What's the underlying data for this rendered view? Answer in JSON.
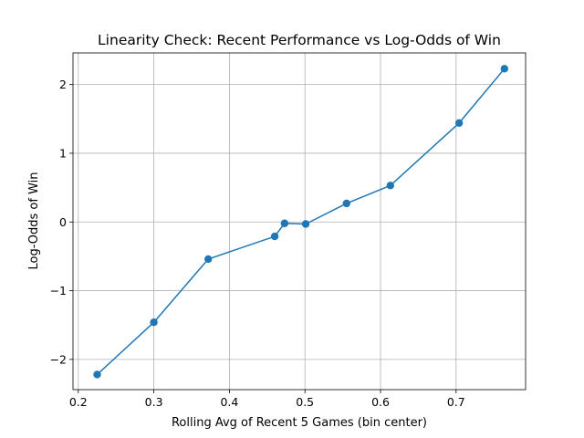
{
  "chart_data": {
    "type": "line",
    "title": "Linearity Check: Recent Performance vs Log-Odds of Win",
    "xlabel": "Rolling Avg of Recent 5 Games (bin center)",
    "ylabel": "Log-Odds of Win",
    "xlim": [
      0.193,
      0.792
    ],
    "ylim": [
      -2.44,
      2.46
    ],
    "x_ticks": [
      0.2,
      0.3,
      0.4,
      0.5,
      0.6,
      0.7
    ],
    "x_tick_labels": [
      "0.2",
      "0.3",
      "0.4",
      "0.5",
      "0.6",
      "0.7"
    ],
    "y_ticks": [
      -2,
      -1,
      0,
      1,
      2
    ],
    "y_tick_labels": [
      "−2",
      "−1",
      "0",
      "1",
      "2"
    ],
    "grid": true,
    "legend": "none",
    "series": [
      {
        "color": "#1f77b4",
        "marker": "circle",
        "x": [
          0.225,
          0.3,
          0.372,
          0.46,
          0.473,
          0.501,
          0.555,
          0.613,
          0.704,
          0.764
        ],
        "y": [
          -2.22,
          -1.46,
          -0.54,
          -0.21,
          -0.02,
          -0.03,
          0.27,
          0.53,
          1.44,
          2.23
        ]
      }
    ]
  }
}
